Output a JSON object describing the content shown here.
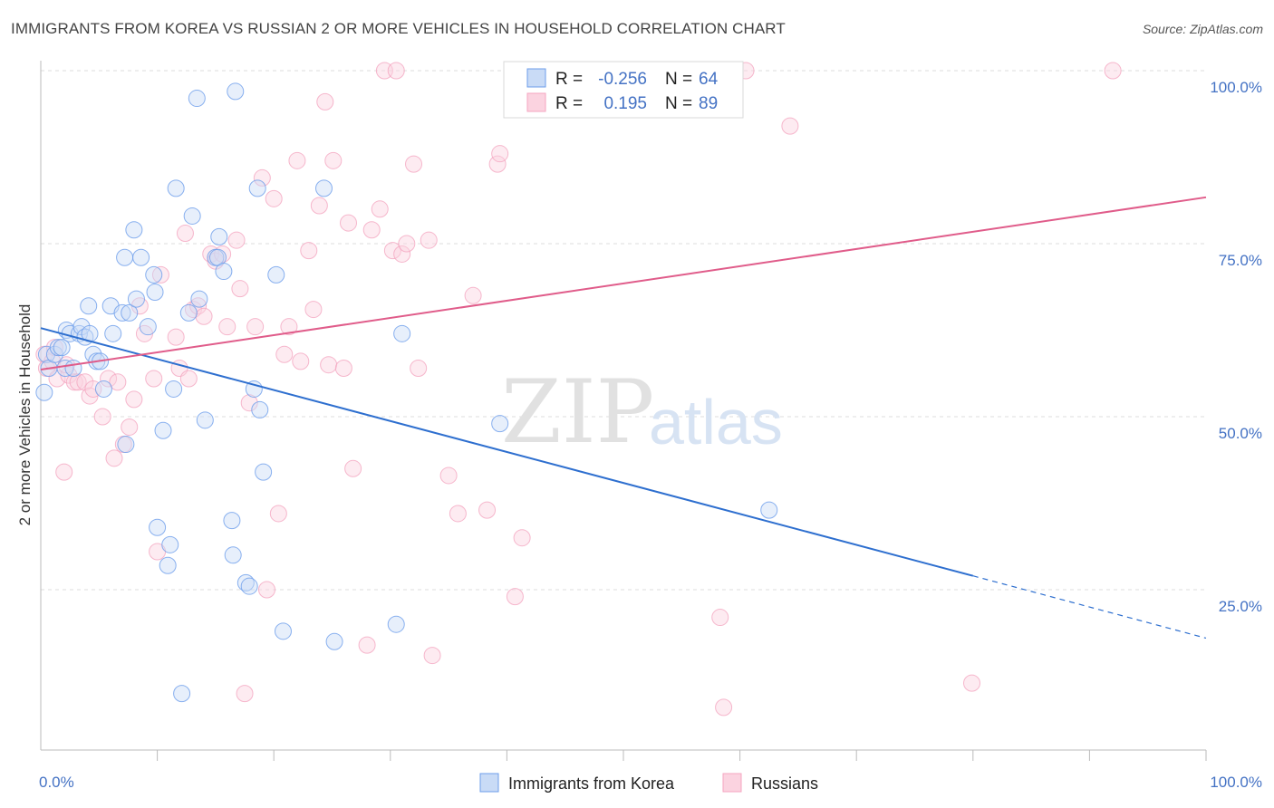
{
  "title": "IMMIGRANTS FROM KOREA VS RUSSIAN 2 OR MORE VEHICLES IN HOUSEHOLD CORRELATION CHART",
  "source": "Source: ZipAtlas.com",
  "watermark": {
    "zip": "ZIP",
    "atlas": "atlas"
  },
  "legend_box": {
    "r_label": "R =",
    "n_label": "N =",
    "rows": [
      {
        "r": "-0.256",
        "n": "64"
      },
      {
        "r": "0.195",
        "n": "89"
      }
    ]
  },
  "chart_data": {
    "type": "scatter",
    "title": "IMMIGRANTS FROM KOREA VS RUSSIAN 2 OR MORE VEHICLES IN HOUSEHOLD CORRELATION CHART",
    "xlabel": "",
    "ylabel": "2 or more Vehicles in Household",
    "xlim": [
      0,
      100
    ],
    "ylim": [
      0,
      100
    ],
    "x_tick_labels": [
      "0.0%",
      "100.0%"
    ],
    "y_ticks": [
      25,
      50,
      75,
      100
    ],
    "y_tick_labels": [
      "25.0%",
      "50.0%",
      "75.0%",
      "100.0%"
    ],
    "grid": true,
    "legend_position": "bottom",
    "series": [
      {
        "name": "Immigrants from Korea",
        "color": "#6d9eeb",
        "line_color": "#2e6fcf",
        "r": -0.256,
        "n": 64,
        "trend": {
          "x0": 0,
          "y0": 62.8,
          "x1": 80,
          "y1": 27.0,
          "x_dash_end": 100,
          "y_dash_end": 18.0
        },
        "points": [
          [
            0.3,
            53.5
          ],
          [
            0.5,
            59
          ],
          [
            0.7,
            57
          ],
          [
            1.2,
            59
          ],
          [
            1.5,
            60
          ],
          [
            1.8,
            60
          ],
          [
            2.1,
            57
          ],
          [
            2.2,
            62.5
          ],
          [
            2.5,
            62
          ],
          [
            2.8,
            57
          ],
          [
            3.3,
            62
          ],
          [
            3.5,
            63
          ],
          [
            3.8,
            61.5
          ],
          [
            4.1,
            66
          ],
          [
            4.2,
            62
          ],
          [
            4.5,
            59
          ],
          [
            4.8,
            58
          ],
          [
            5.1,
            58
          ],
          [
            5.4,
            54
          ],
          [
            6.0,
            66
          ],
          [
            6.2,
            62
          ],
          [
            7.0,
            65
          ],
          [
            7.2,
            73
          ],
          [
            7.6,
            65
          ],
          [
            8.0,
            77
          ],
          [
            8.2,
            67
          ],
          [
            8.6,
            73
          ],
          [
            9.2,
            63
          ],
          [
            9.7,
            70.5
          ],
          [
            9.8,
            68
          ],
          [
            7.3,
            46
          ],
          [
            10.0,
            34
          ],
          [
            10.5,
            48
          ],
          [
            11.1,
            31.5
          ],
          [
            11.4,
            54
          ],
          [
            11.6,
            83
          ],
          [
            12.1,
            10
          ],
          [
            12.7,
            65
          ],
          [
            13.0,
            79
          ],
          [
            13.4,
            96
          ],
          [
            13.6,
            67
          ],
          [
            14.1,
            49.5
          ],
          [
            15.0,
            73
          ],
          [
            15.2,
            73
          ],
          [
            15.3,
            76
          ],
          [
            15.7,
            71
          ],
          [
            16.4,
            35
          ],
          [
            16.5,
            30
          ],
          [
            16.7,
            97
          ],
          [
            17.6,
            26
          ],
          [
            18.3,
            54
          ],
          [
            18.6,
            83
          ],
          [
            18.8,
            51
          ],
          [
            19.1,
            42
          ],
          [
            20.2,
            70.5
          ],
          [
            20.8,
            19
          ],
          [
            24.3,
            83
          ],
          [
            25.2,
            17.5
          ],
          [
            30.5,
            20
          ],
          [
            31.0,
            62
          ],
          [
            39.4,
            49
          ],
          [
            62.5,
            36.5
          ],
          [
            17.9,
            25.5
          ],
          [
            10.9,
            28.5
          ]
        ]
      },
      {
        "name": "Russians",
        "color": "#f4a6c0",
        "line_color": "#e05c8a",
        "r": 0.195,
        "n": 89,
        "trend": {
          "x0": 0,
          "y0": 56.8,
          "x1": 100,
          "y1": 81.7
        },
        "points": [
          [
            0.3,
            59
          ],
          [
            0.5,
            57
          ],
          [
            1.0,
            58
          ],
          [
            1.4,
            55.5
          ],
          [
            2.0,
            42
          ],
          [
            2.4,
            56
          ],
          [
            2.9,
            55
          ],
          [
            3.2,
            55
          ],
          [
            3.8,
            55
          ],
          [
            4.2,
            53
          ],
          [
            4.5,
            54
          ],
          [
            5.3,
            50
          ],
          [
            5.8,
            55.5
          ],
          [
            6.3,
            44
          ],
          [
            6.6,
            55
          ],
          [
            7.1,
            46
          ],
          [
            7.6,
            48.5
          ],
          [
            8.0,
            52.5
          ],
          [
            8.5,
            66
          ],
          [
            8.9,
            62
          ],
          [
            9.7,
            55.5
          ],
          [
            10.0,
            30.5
          ],
          [
            10.3,
            70.5
          ],
          [
            11.6,
            61.5
          ],
          [
            11.9,
            57
          ],
          [
            12.4,
            76.5
          ],
          [
            12.7,
            55.5
          ],
          [
            13.1,
            65.5
          ],
          [
            13.5,
            66
          ],
          [
            14.0,
            64.5
          ],
          [
            14.6,
            73.5
          ],
          [
            15.0,
            72.5
          ],
          [
            15.6,
            73.5
          ],
          [
            16.0,
            63
          ],
          [
            16.8,
            75.5
          ],
          [
            17.1,
            68.5
          ],
          [
            17.5,
            10
          ],
          [
            17.9,
            52
          ],
          [
            18.4,
            63
          ],
          [
            19.0,
            84.5
          ],
          [
            19.4,
            25
          ],
          [
            20.0,
            81.5
          ],
          [
            20.4,
            36
          ],
          [
            20.9,
            59
          ],
          [
            21.3,
            63
          ],
          [
            22.0,
            87
          ],
          [
            22.3,
            58
          ],
          [
            23.0,
            74
          ],
          [
            23.4,
            65.5
          ],
          [
            23.9,
            80.5
          ],
          [
            24.4,
            95.5
          ],
          [
            24.7,
            57.5
          ],
          [
            25.1,
            87
          ],
          [
            26.0,
            57
          ],
          [
            26.4,
            78
          ],
          [
            26.8,
            42.5
          ],
          [
            28.0,
            17
          ],
          [
            28.4,
            77
          ],
          [
            29.1,
            80
          ],
          [
            29.5,
            100
          ],
          [
            30.2,
            74
          ],
          [
            30.5,
            100
          ],
          [
            31.0,
            73.5
          ],
          [
            31.4,
            75
          ],
          [
            32.0,
            86.5
          ],
          [
            32.4,
            57
          ],
          [
            33.3,
            75.5
          ],
          [
            33.6,
            15.5
          ],
          [
            35.0,
            41.5
          ],
          [
            35.8,
            36
          ],
          [
            37.1,
            67.5
          ],
          [
            38.3,
            36.5
          ],
          [
            39.2,
            86.5
          ],
          [
            39.4,
            88
          ],
          [
            40.7,
            24
          ],
          [
            41.3,
            32.5
          ],
          [
            47.5,
            100
          ],
          [
            50.3,
            100
          ],
          [
            52.0,
            100
          ],
          [
            54.4,
            100
          ],
          [
            56.2,
            100
          ],
          [
            58.3,
            21
          ],
          [
            58.6,
            8
          ],
          [
            60.5,
            100
          ],
          [
            64.3,
            92
          ],
          [
            79.9,
            11.5
          ],
          [
            92.0,
            100
          ],
          [
            2.2,
            57.5
          ],
          [
            1.2,
            60
          ]
        ]
      }
    ]
  }
}
